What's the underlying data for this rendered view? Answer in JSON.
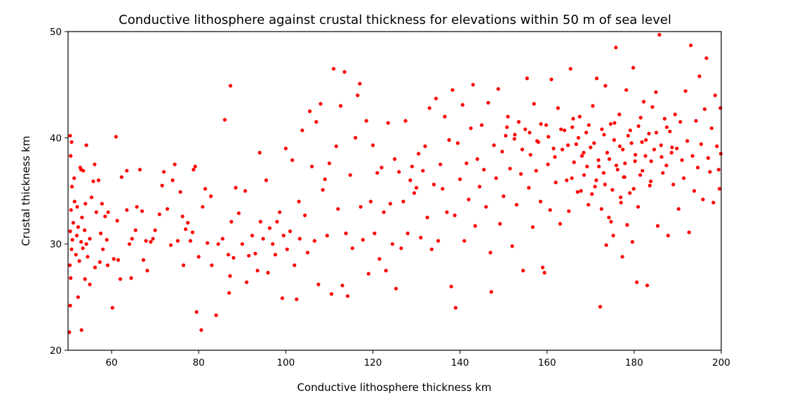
{
  "chart_data": {
    "type": "scatter",
    "title": "Conductive lithosphere against crustal thickness for elevations within 50 m of sea level",
    "xlabel": "Conductive lithosphere thickness km",
    "ylabel": "Crustal thickness km",
    "xlim": [
      50,
      200
    ],
    "ylim": [
      20,
      50
    ],
    "xticks": [
      60,
      80,
      100,
      120,
      140,
      160,
      180,
      200
    ],
    "yticks": [
      20,
      30,
      40,
      50
    ],
    "grid": false,
    "legend": "none",
    "marker_color": "#ff0000",
    "points": [
      [
        50.3,
        21.7
      ],
      [
        50.5,
        24.2
      ],
      [
        50.6,
        26.8
      ],
      [
        50.4,
        28.0
      ],
      [
        50.8,
        29.5
      ],
      [
        51.0,
        30.4
      ],
      [
        50.5,
        31.2
      ],
      [
        51.2,
        32.0
      ],
      [
        50.7,
        33.2
      ],
      [
        51.5,
        34.0
      ],
      [
        50.9,
        35.4
      ],
      [
        51.4,
        36.2
      ],
      [
        50.6,
        38.3
      ],
      [
        50.8,
        39.6
      ],
      [
        50.5,
        40.2
      ],
      [
        51.8,
        29.0
      ],
      [
        52.0,
        30.8
      ],
      [
        52.3,
        31.6
      ],
      [
        52.6,
        28.4
      ],
      [
        53.0,
        30.2
      ],
      [
        53.4,
        29.6
      ],
      [
        53.8,
        31.3
      ],
      [
        54.2,
        30.0
      ],
      [
        54.5,
        28.8
      ],
      [
        55.0,
        30.5
      ],
      [
        52.1,
        33.5
      ],
      [
        53.2,
        32.5
      ],
      [
        54.0,
        33.8
      ],
      [
        55.4,
        34.4
      ],
      [
        53.5,
        36.9
      ],
      [
        52.8,
        37.2
      ],
      [
        54.2,
        39.3
      ],
      [
        53.0,
        37.0
      ],
      [
        56.1,
        37.5
      ],
      [
        55.8,
        35.9
      ],
      [
        57.0,
        36.0
      ],
      [
        56.5,
        33.0
      ],
      [
        57.5,
        31.0
      ],
      [
        58.0,
        29.5
      ],
      [
        57.8,
        33.8
      ],
      [
        58.5,
        32.6
      ],
      [
        59.2,
        33.0
      ],
      [
        58.9,
        30.4
      ],
      [
        52.3,
        25.0
      ],
      [
        53.1,
        21.9
      ],
      [
        53.9,
        26.7
      ],
      [
        55.0,
        26.2
      ],
      [
        56.2,
        27.8
      ],
      [
        57.3,
        28.3
      ],
      [
        59.1,
        28.0
      ],
      [
        60.2,
        24.0
      ],
      [
        60.5,
        28.6
      ],
      [
        61.5,
        28.5
      ],
      [
        61.0,
        40.1
      ],
      [
        61.3,
        32.2
      ],
      [
        62.0,
        26.7
      ],
      [
        62.3,
        36.3
      ],
      [
        63.5,
        36.9
      ],
      [
        63.5,
        33.2
      ],
      [
        64.1,
        30.0
      ],
      [
        64.7,
        30.5
      ],
      [
        64.5,
        26.8
      ],
      [
        65.5,
        31.3
      ],
      [
        65.8,
        33.5
      ],
      [
        66.5,
        37.0
      ],
      [
        67.0,
        33.1
      ],
      [
        67.3,
        28.5
      ],
      [
        67.9,
        30.3
      ],
      [
        68.2,
        27.5
      ],
      [
        69.0,
        30.2
      ],
      [
        69.5,
        30.5
      ],
      [
        70.0,
        31.3
      ],
      [
        71.0,
        32.8
      ],
      [
        72.0,
        36.8
      ],
      [
        71.6,
        35.5
      ],
      [
        72.8,
        33.3
      ],
      [
        73.6,
        29.9
      ],
      [
        74.0,
        36.0
      ],
      [
        74.5,
        37.5
      ],
      [
        75.2,
        30.3
      ],
      [
        75.8,
        34.9
      ],
      [
        76.3,
        32.6
      ],
      [
        76.5,
        28.0
      ],
      [
        77.0,
        31.4
      ],
      [
        77.5,
        32.0
      ],
      [
        78.1,
        30.3
      ],
      [
        78.6,
        31.1
      ],
      [
        78.8,
        37.0
      ],
      [
        79.2,
        37.3
      ],
      [
        79.5,
        23.6
      ],
      [
        80.0,
        28.8
      ],
      [
        80.6,
        21.9
      ],
      [
        80.9,
        33.5
      ],
      [
        81.5,
        35.2
      ],
      [
        82.0,
        30.1
      ],
      [
        82.8,
        34.5
      ],
      [
        83.0,
        28.0
      ],
      [
        84.0,
        23.3
      ],
      [
        84.5,
        30.0
      ],
      [
        85.5,
        30.5
      ],
      [
        86.0,
        41.7
      ],
      [
        86.8,
        29.0
      ],
      [
        87.0,
        25.4
      ],
      [
        87.2,
        27.0
      ],
      [
        87.3,
        44.9
      ],
      [
        87.5,
        32.1
      ],
      [
        88.0,
        28.7
      ],
      [
        88.5,
        35.3
      ],
      [
        89.2,
        32.9
      ],
      [
        90.0,
        30.0
      ],
      [
        90.7,
        35.0
      ],
      [
        91.0,
        26.4
      ],
      [
        91.5,
        28.9
      ],
      [
        92.3,
        30.8
      ],
      [
        93.0,
        29.1
      ],
      [
        93.5,
        27.5
      ],
      [
        94.0,
        38.6
      ],
      [
        94.2,
        32.1
      ],
      [
        94.8,
        30.5
      ],
      [
        95.5,
        36.0
      ],
      [
        95.9,
        27.3
      ],
      [
        96.3,
        31.5
      ],
      [
        97.0,
        30.0
      ],
      [
        97.6,
        29.0
      ],
      [
        98.0,
        32.1
      ],
      [
        98.6,
        33.0
      ],
      [
        99.2,
        24.9
      ],
      [
        99.5,
        30.8
      ],
      [
        100.0,
        39.0
      ],
      [
        100.3,
        29.5
      ],
      [
        101.0,
        31.2
      ],
      [
        101.5,
        37.9
      ],
      [
        102.0,
        28.0
      ],
      [
        102.5,
        24.8
      ],
      [
        103.0,
        34.0
      ],
      [
        103.2,
        30.5
      ],
      [
        103.8,
        40.7
      ],
      [
        104.4,
        32.7
      ],
      [
        105.0,
        29.2
      ],
      [
        105.5,
        42.5
      ],
      [
        106.0,
        37.3
      ],
      [
        106.6,
        30.3
      ],
      [
        107.0,
        41.5
      ],
      [
        107.5,
        26.2
      ],
      [
        108.0,
        43.2
      ],
      [
        108.5,
        35.1
      ],
      [
        109.0,
        36.1
      ],
      [
        109.5,
        30.8
      ],
      [
        110.0,
        37.6
      ],
      [
        110.5,
        25.3
      ],
      [
        111.0,
        46.5
      ],
      [
        111.6,
        39.2
      ],
      [
        112.0,
        33.3
      ],
      [
        112.6,
        43.0
      ],
      [
        113.0,
        26.1
      ],
      [
        113.5,
        46.2
      ],
      [
        113.8,
        31.0
      ],
      [
        114.2,
        25.1
      ],
      [
        114.8,
        36.5
      ],
      [
        115.3,
        29.6
      ],
      [
        116.0,
        40.0
      ],
      [
        116.5,
        44.0
      ],
      [
        117.0,
        45.1
      ],
      [
        117.2,
        33.5
      ],
      [
        117.7,
        30.4
      ],
      [
        118.5,
        41.6
      ],
      [
        119.0,
        27.2
      ],
      [
        119.5,
        34.0
      ],
      [
        120.0,
        39.3
      ],
      [
        120.4,
        31.0
      ],
      [
        121.0,
        36.7
      ],
      [
        121.5,
        28.6
      ],
      [
        122.0,
        37.2
      ],
      [
        122.5,
        33.0
      ],
      [
        123.0,
        27.5
      ],
      [
        123.5,
        41.4
      ],
      [
        124.0,
        33.8
      ],
      [
        124.5,
        30.0
      ],
      [
        125.0,
        38.0
      ],
      [
        125.3,
        25.8
      ],
      [
        126.0,
        36.8
      ],
      [
        126.5,
        29.6
      ],
      [
        127.0,
        34.0
      ],
      [
        127.5,
        41.6
      ],
      [
        128.0,
        31.0
      ],
      [
        128.6,
        36.0
      ],
      [
        129.0,
        37.3
      ],
      [
        129.5,
        34.8
      ],
      [
        130.0,
        35.3
      ],
      [
        130.5,
        38.5
      ],
      [
        131.0,
        30.6
      ],
      [
        131.5,
        36.9
      ],
      [
        132.0,
        39.2
      ],
      [
        132.5,
        32.5
      ],
      [
        133.0,
        42.8
      ],
      [
        133.5,
        29.5
      ],
      [
        134.0,
        35.6
      ],
      [
        134.5,
        43.7
      ],
      [
        135.0,
        30.3
      ],
      [
        135.5,
        37.5
      ],
      [
        136.0,
        35.2
      ],
      [
        136.5,
        42.0
      ],
      [
        137.0,
        33.0
      ],
      [
        137.5,
        39.8
      ],
      [
        138.0,
        26.0
      ],
      [
        138.3,
        44.5
      ],
      [
        138.8,
        32.7
      ],
      [
        139.0,
        24.0
      ],
      [
        139.5,
        39.5
      ],
      [
        140.0,
        36.1
      ],
      [
        140.6,
        43.1
      ],
      [
        141.0,
        30.3
      ],
      [
        141.5,
        37.6
      ],
      [
        142.0,
        34.2
      ],
      [
        142.5,
        40.9
      ],
      [
        143.0,
        45.0
      ],
      [
        143.5,
        31.7
      ],
      [
        144.0,
        38.0
      ],
      [
        144.5,
        35.4
      ],
      [
        145.0,
        41.2
      ],
      [
        145.5,
        37.0
      ],
      [
        146.0,
        33.5
      ],
      [
        146.5,
        43.3
      ],
      [
        147.0,
        29.2
      ],
      [
        147.2,
        25.5
      ],
      [
        147.8,
        39.3
      ],
      [
        148.3,
        36.2
      ],
      [
        148.8,
        44.6
      ],
      [
        149.2,
        31.9
      ],
      [
        149.7,
        38.7
      ],
      [
        150.0,
        34.5
      ],
      [
        150.5,
        40.2
      ],
      [
        151.0,
        42.0
      ],
      [
        151.5,
        37.1
      ],
      [
        152.0,
        29.8
      ],
      [
        152.5,
        39.9
      ],
      [
        153.0,
        33.7
      ],
      [
        153.5,
        41.5
      ],
      [
        154.0,
        36.6
      ],
      [
        154.5,
        27.5
      ],
      [
        155.0,
        40.8
      ],
      [
        155.4,
        45.6
      ],
      [
        155.8,
        35.3
      ],
      [
        156.2,
        38.4
      ],
      [
        156.7,
        31.6
      ],
      [
        157.0,
        43.2
      ],
      [
        157.5,
        36.9
      ],
      [
        158.0,
        39.6
      ],
      [
        158.5,
        34.0
      ],
      [
        159.0,
        27.8
      ],
      [
        159.4,
        27.3
      ],
      [
        159.8,
        41.2
      ],
      [
        160.2,
        37.5
      ],
      [
        160.7,
        33.2
      ],
      [
        161.0,
        45.5
      ],
      [
        161.5,
        39.0
      ],
      [
        162.0,
        35.8
      ],
      [
        162.5,
        42.8
      ],
      [
        163.0,
        31.9
      ],
      [
        163.5,
        38.9
      ],
      [
        164.0,
        40.7
      ],
      [
        164.5,
        36.0
      ],
      [
        165.0,
        33.1
      ],
      [
        165.4,
        46.5
      ],
      [
        165.8,
        41.0
      ],
      [
        166.2,
        37.7
      ],
      [
        166.7,
        39.4
      ],
      [
        167.0,
        34.9
      ],
      [
        167.5,
        42.0
      ],
      [
        168.0,
        38.3
      ],
      [
        168.5,
        36.5
      ],
      [
        169.0,
        40.5
      ],
      [
        169.5,
        33.7
      ],
      [
        170.0,
        39.1
      ],
      [
        170.5,
        43.0
      ],
      [
        171.0,
        35.4
      ],
      [
        171.4,
        45.6
      ],
      [
        171.8,
        37.9
      ],
      [
        172.2,
        24.1
      ],
      [
        172.6,
        40.8
      ],
      [
        173.0,
        36.7
      ],
      [
        173.4,
        44.9
      ],
      [
        173.8,
        38.6
      ],
      [
        174.2,
        32.5
      ],
      [
        174.6,
        41.3
      ],
      [
        175.0,
        35.1
      ],
      [
        175.4,
        39.8
      ],
      [
        175.8,
        48.5
      ],
      [
        176.2,
        37.0
      ],
      [
        176.6,
        42.2
      ],
      [
        177.0,
        33.9
      ],
      [
        177.4,
        38.9
      ],
      [
        177.8,
        36.3
      ],
      [
        178.2,
        44.5
      ],
      [
        178.6,
        40.2
      ],
      [
        179.0,
        34.8
      ],
      [
        179.4,
        39.5
      ],
      [
        179.8,
        46.6
      ],
      [
        180.2,
        37.8
      ],
      [
        180.6,
        26.4
      ],
      [
        181.0,
        41.1
      ],
      [
        181.4,
        36.5
      ],
      [
        181.8,
        39.6
      ],
      [
        182.2,
        43.4
      ],
      [
        182.6,
        38.3
      ],
      [
        183.0,
        26.1
      ],
      [
        183.4,
        40.4
      ],
      [
        183.8,
        35.9
      ],
      [
        184.2,
        42.9
      ],
      [
        184.6,
        38.9
      ],
      [
        185.0,
        44.3
      ],
      [
        185.4,
        31.7
      ],
      [
        185.8,
        49.7
      ],
      [
        186.2,
        39.3
      ],
      [
        186.6,
        36.7
      ],
      [
        187.0,
        41.8
      ],
      [
        187.4,
        37.4
      ],
      [
        187.8,
        30.8
      ],
      [
        188.2,
        40.6
      ],
      [
        188.6,
        38.6
      ],
      [
        189.0,
        35.6
      ],
      [
        189.4,
        42.2
      ],
      [
        189.8,
        39.0
      ],
      [
        190.2,
        33.3
      ],
      [
        190.6,
        41.5
      ],
      [
        191.0,
        37.9
      ],
      [
        191.4,
        36.2
      ],
      [
        191.8,
        44.4
      ],
      [
        192.2,
        39.7
      ],
      [
        192.6,
        31.1
      ],
      [
        193.0,
        48.7
      ],
      [
        193.4,
        38.3
      ],
      [
        193.8,
        35.0
      ],
      [
        194.2,
        41.6
      ],
      [
        194.6,
        37.2
      ],
      [
        195.0,
        45.8
      ],
      [
        195.4,
        39.4
      ],
      [
        195.8,
        34.2
      ],
      [
        196.2,
        42.7
      ],
      [
        196.6,
        47.5
      ],
      [
        197.0,
        38.1
      ],
      [
        197.4,
        36.8
      ],
      [
        197.8,
        40.9
      ],
      [
        198.2,
        33.9
      ],
      [
        198.6,
        44.0
      ],
      [
        199.0,
        39.2
      ],
      [
        199.4,
        37.0
      ],
      [
        199.8,
        42.8
      ],
      [
        199.6,
        35.2
      ],
      [
        199.9,
        38.5
      ],
      [
        150.8,
        41.0
      ],
      [
        152.6,
        40.3
      ],
      [
        154.3,
        38.9
      ],
      [
        156.0,
        40.5
      ],
      [
        157.7,
        39.7
      ],
      [
        158.6,
        41.3
      ],
      [
        160.3,
        40.1
      ],
      [
        161.8,
        38.2
      ],
      [
        163.2,
        40.8
      ],
      [
        164.8,
        39.3
      ],
      [
        166.0,
        41.8
      ],
      [
        167.2,
        40.0
      ],
      [
        168.4,
        38.6
      ],
      [
        169.6,
        41.2
      ],
      [
        170.8,
        39.5
      ],
      [
        171.9,
        37.3
      ],
      [
        173.1,
        40.3
      ],
      [
        174.3,
        38.0
      ],
      [
        175.5,
        41.4
      ],
      [
        176.7,
        39.2
      ],
      [
        177.9,
        37.6
      ],
      [
        179.1,
        40.7
      ],
      [
        180.3,
        38.4
      ],
      [
        181.5,
        41.9
      ],
      [
        182.7,
        39.8
      ],
      [
        183.9,
        37.8
      ],
      [
        185.1,
        40.5
      ],
      [
        186.3,
        38.2
      ],
      [
        187.5,
        41.0
      ],
      [
        188.7,
        39.1
      ],
      [
        170.3,
        34.7
      ],
      [
        172.5,
        33.3
      ],
      [
        174.7,
        32.1
      ],
      [
        176.9,
        34.4
      ],
      [
        178.4,
        31.8
      ],
      [
        180.9,
        33.5
      ],
      [
        173.6,
        29.9
      ],
      [
        175.2,
        30.8
      ],
      [
        177.3,
        28.8
      ],
      [
        179.6,
        30.2
      ],
      [
        165.7,
        36.2
      ],
      [
        167.8,
        35.0
      ],
      [
        169.2,
        37.3
      ],
      [
        171.3,
        36.0
      ],
      [
        173.3,
        35.6
      ],
      [
        175.9,
        37.4
      ],
      [
        177.6,
        36.3
      ],
      [
        179.9,
        35.2
      ],
      [
        181.9,
        36.9
      ],
      [
        183.6,
        35.5
      ]
    ]
  }
}
